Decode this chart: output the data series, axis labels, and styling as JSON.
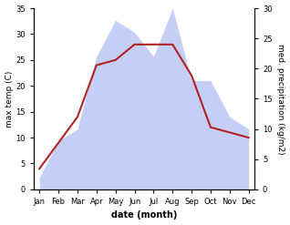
{
  "months": [
    "Jan",
    "Feb",
    "Mar",
    "Apr",
    "May",
    "Jun",
    "Jul",
    "Aug",
    "Sep",
    "Oct",
    "Nov",
    "Dec"
  ],
  "temperature": [
    4,
    9,
    14,
    24,
    25,
    28,
    28,
    28,
    22,
    12,
    11,
    10
  ],
  "precipitation": [
    2,
    8,
    10,
    22,
    28,
    26,
    22,
    30,
    18,
    18,
    12,
    10
  ],
  "temp_color": "#b22222",
  "precip_fill_color": "#c5cff5",
  "background_color": "#ffffff",
  "left_ylabel": "max temp (C)",
  "right_ylabel": "med. precipitation (kg/m2)",
  "xlabel": "date (month)",
  "left_ylim": [
    0,
    35
  ],
  "right_ylim": [
    0,
    30
  ],
  "left_yticks": [
    0,
    5,
    10,
    15,
    20,
    25,
    30,
    35
  ],
  "right_yticks": [
    0,
    5,
    10,
    15,
    20,
    25,
    30
  ]
}
